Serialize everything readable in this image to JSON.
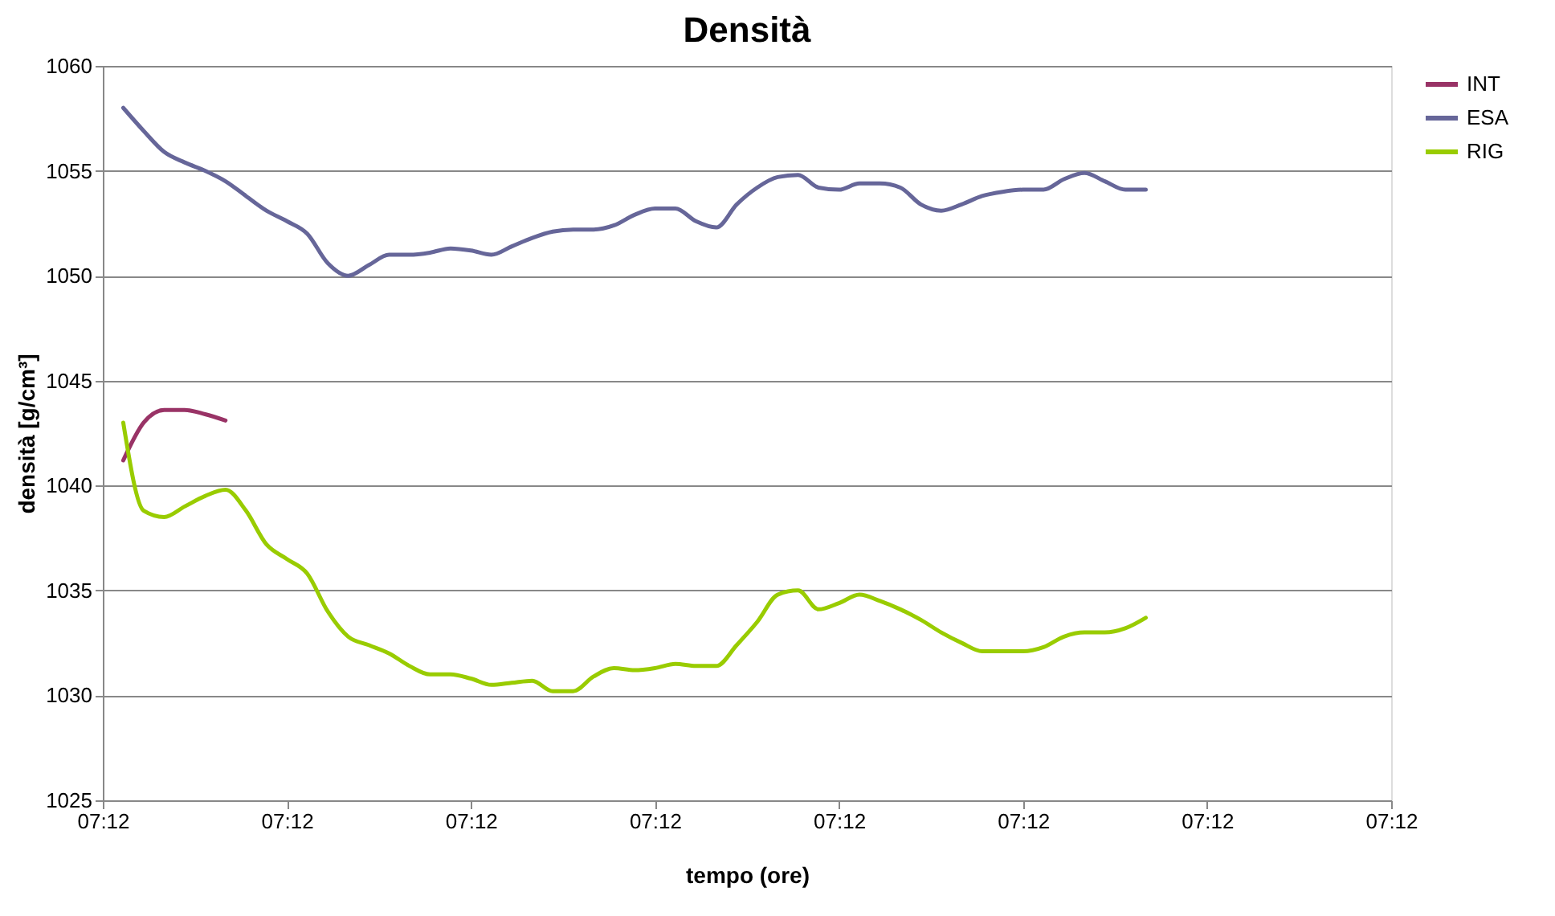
{
  "chart_data": {
    "type": "line",
    "title": "Densità",
    "xlabel": "tempo (ore)",
    "ylabel": "densità [g/cm³]",
    "categories": [
      "07:12",
      null,
      null,
      null,
      null,
      null,
      null,
      null,
      null,
      "07:12",
      null,
      null,
      null,
      null,
      null,
      null,
      null,
      null,
      "07:12",
      null,
      null,
      null,
      null,
      null,
      null,
      null,
      null,
      "07:12",
      null,
      null,
      null,
      null,
      null,
      null,
      null,
      null,
      "07:12",
      null,
      null,
      null,
      null,
      null,
      null,
      null,
      null,
      "07:12",
      null,
      null,
      null,
      null,
      null,
      null,
      null,
      null,
      "07:12",
      null,
      null,
      null,
      null,
      null,
      null,
      null,
      null,
      "07:12"
    ],
    "ylim": [
      1025,
      1060
    ],
    "yticks": [
      1025,
      1030,
      1035,
      1040,
      1045,
      1050,
      1055,
      1060
    ],
    "grid": "y",
    "legend": "right",
    "marker": "none",
    "line_style": "solid",
    "series": [
      {
        "name": "INT",
        "color": "#993366",
        "values": [
          null,
          1041.2,
          1043.0,
          1043.6,
          1043.6,
          1043.4,
          1043.1,
          null,
          null,
          null,
          null,
          null,
          null,
          null,
          null,
          null,
          null,
          null,
          null,
          null,
          null,
          null,
          null,
          null,
          null,
          null,
          null,
          null,
          null,
          null,
          null,
          null,
          null,
          null,
          null,
          null,
          null,
          null,
          null,
          null,
          null,
          null,
          null,
          null,
          null,
          null,
          null,
          null,
          null,
          null,
          null,
          null,
          null,
          null,
          null,
          null,
          null,
          null,
          null,
          null,
          null,
          null,
          null,
          null
        ]
      },
      {
        "name": "ESA",
        "color": "#666699",
        "values": [
          null,
          1058.0,
          1056.9,
          1055.9,
          1055.4,
          1055.0,
          1054.5,
          1053.8,
          1053.1,
          1052.6,
          1052.0,
          1050.6,
          1050.0,
          1050.5,
          1051.0,
          1051.0,
          1051.1,
          1051.3,
          1051.2,
          1051.0,
          1051.4,
          1051.8,
          1052.1,
          1052.2,
          1052.2,
          1052.4,
          1052.9,
          1053.2,
          1053.2,
          1052.6,
          1052.3,
          1053.4,
          1054.2,
          1054.7,
          1054.8,
          1054.2,
          1054.1,
          1054.4,
          1054.4,
          1054.2,
          1053.4,
          1053.1,
          1053.4,
          1053.8,
          1054.0,
          1054.1,
          1054.1,
          1054.6,
          1054.9,
          1054.5,
          1054.1,
          1054.1,
          null,
          null,
          null,
          null,
          null,
          null,
          null,
          null,
          null,
          null,
          null,
          null
        ]
      },
      {
        "name": "RIG",
        "color": "#99cc00",
        "values": [
          null,
          1043.0,
          1038.8,
          1038.5,
          1039.0,
          1039.5,
          1039.8,
          1038.8,
          1037.2,
          1036.5,
          1035.8,
          1034.0,
          1032.8,
          1032.4,
          1032.0,
          1031.4,
          1031.0,
          1031.0,
          1030.8,
          1030.5,
          1030.6,
          1030.7,
          1030.2,
          1030.2,
          1030.9,
          1031.3,
          1031.2,
          1031.3,
          1031.5,
          1031.4,
          1031.4,
          1032.4,
          1033.5,
          1034.8,
          1035.0,
          1034.1,
          1034.4,
          1034.8,
          1034.5,
          1034.1,
          1033.6,
          1033.0,
          1032.5,
          1032.1,
          1032.1,
          1032.1,
          1032.3,
          1032.8,
          1033.0,
          1033.0,
          1033.2,
          1033.7,
          null,
          null,
          null,
          null,
          null,
          null,
          null,
          null,
          null,
          null,
          null,
          null
        ]
      }
    ]
  }
}
